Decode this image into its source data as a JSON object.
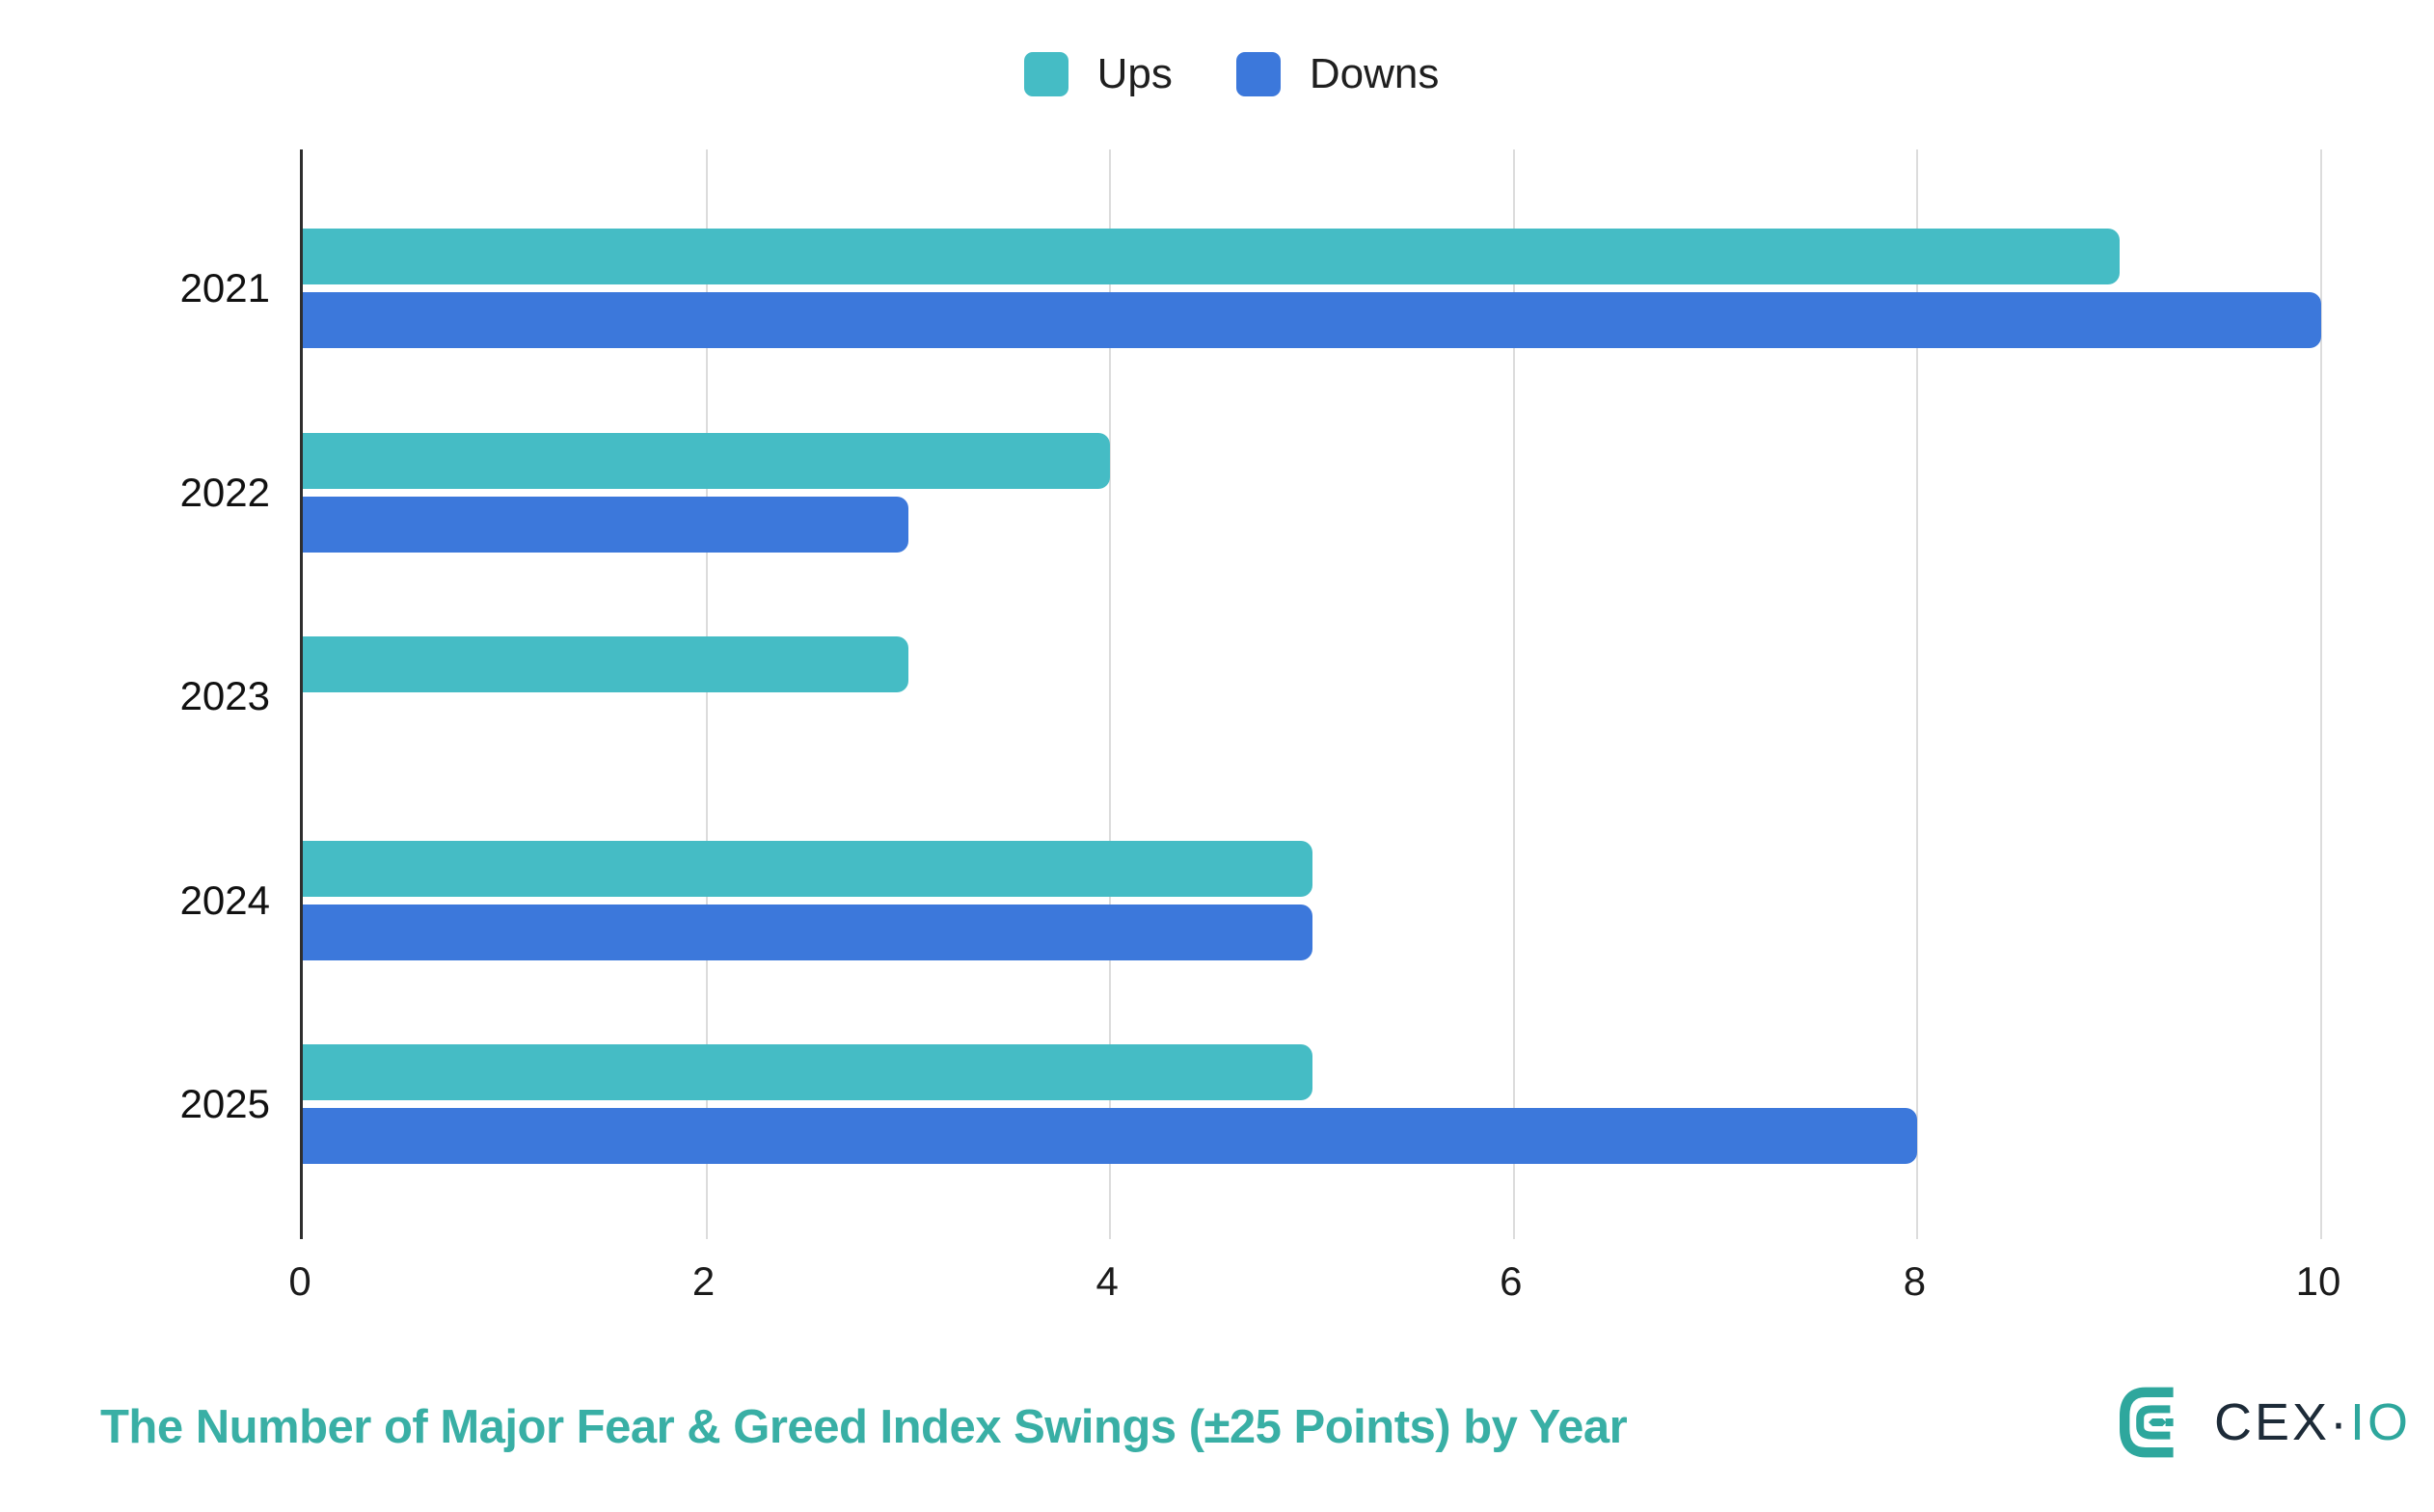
{
  "chart_data": {
    "type": "bar",
    "orientation": "horizontal",
    "categories": [
      "2021",
      "2022",
      "2023",
      "2024",
      "2025"
    ],
    "series": [
      {
        "name": "Ups",
        "color": "#45BCC5",
        "values": [
          9,
          4,
          3,
          5,
          5
        ]
      },
      {
        "name": "Downs",
        "color": "#3C78DB",
        "values": [
          10,
          3,
          0,
          5,
          8
        ]
      }
    ],
    "x_ticks": [
      "0",
      "2",
      "4",
      "6",
      "8",
      "10"
    ],
    "xlim": [
      0,
      10
    ],
    "grid": true,
    "legend_position": "top",
    "title": "The Number of Major Fear & Greed Index Swings (±25 Points) by Year",
    "xlabel": "",
    "ylabel": ""
  },
  "legend": {
    "items": [
      {
        "label": "Ups",
        "color": "#45BCC5"
      },
      {
        "label": "Downs",
        "color": "#3C78DB"
      }
    ]
  },
  "footer": {
    "title": "The Number of Major Fear & Greed Index Swings (±25 Points) by Year",
    "title_color": "#39AFA5"
  },
  "logo": {
    "text_main": "CEX",
    "separator": "·",
    "text_suffix": "IO",
    "mark_color": "#2EA79D",
    "text_main_color": "#1D2B38",
    "text_suffix_color": "#2EA79D"
  },
  "colors": {
    "grid": "#DCDCDC",
    "axis": "#2E2E2E",
    "tick_text": "#1B1B1B",
    "category_text": "#111111",
    "legend_text": "#1F1F1F"
  }
}
